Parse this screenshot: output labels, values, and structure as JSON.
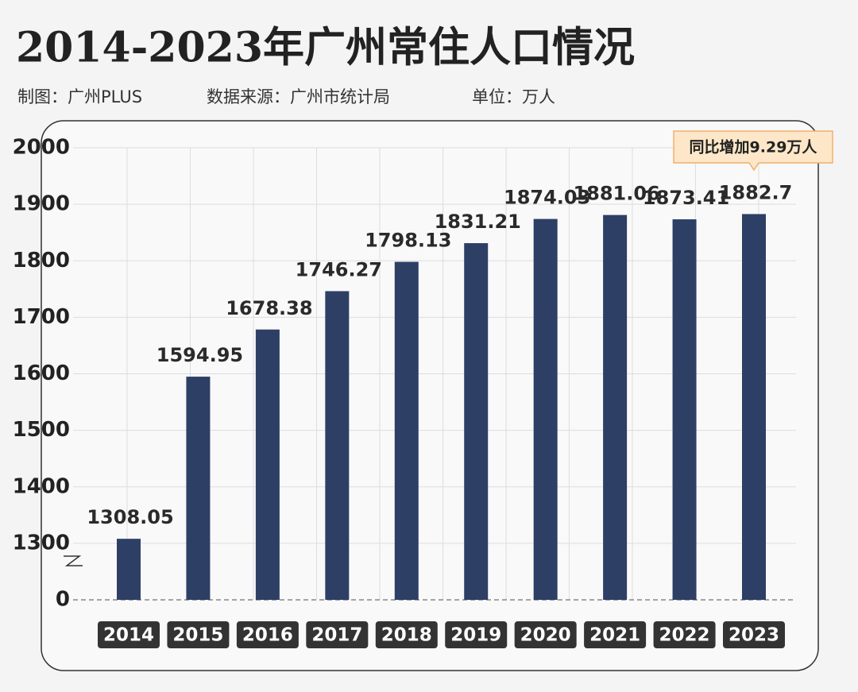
{
  "chart_data": {
    "type": "bar",
    "title": "2014-2023年广州常住人口情况",
    "notes": [
      "制图：广州PLUS",
      "数据来源：广州市统计局",
      "单位：万人"
    ],
    "categories": [
      "2014",
      "2015",
      "2016",
      "2017",
      "2018",
      "2019",
      "2020",
      "2021",
      "2022",
      "2023"
    ],
    "values": [
      1308.05,
      1594.95,
      1678.38,
      1746.27,
      1798.13,
      1831.21,
      1874.03,
      1881.06,
      1873.41,
      1882.7
    ],
    "color": "#2e3f66",
    "ylim": [
      0,
      2000
    ],
    "axis_break": [
      0,
      1200
    ],
    "yticks": [
      0,
      1300,
      1400,
      1500,
      1600,
      1700,
      1800,
      1900,
      2000
    ],
    "grid": true,
    "annotation": "同比增加9.29万人"
  }
}
